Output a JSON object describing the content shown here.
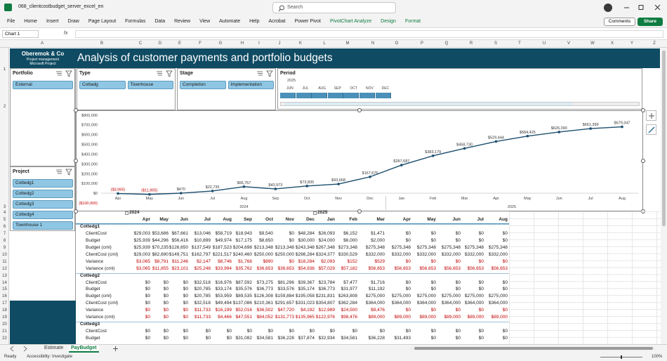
{
  "window": {
    "title": "068_clientcostbudget_server_excel_en",
    "search": "Search"
  },
  "ribbon": {
    "tabs": [
      "File",
      "Home",
      "Insert",
      "Draw",
      "Page Layout",
      "Formulas",
      "Data",
      "Review",
      "View",
      "Automate",
      "Help",
      "Acrobat",
      "Power Pivot"
    ],
    "context_tabs": [
      "PivotChart Analyze",
      "Design",
      "Format"
    ],
    "context_color": "#107c41",
    "comments": "Comments",
    "share": "Share"
  },
  "formula_bar": {
    "name_box": "Chart 1",
    "fx": "fx"
  },
  "columns": [
    "A",
    "B",
    "C",
    "D",
    "E",
    "F",
    "G",
    "H",
    "I",
    "J",
    "K",
    "L",
    "M",
    "N",
    "O",
    "P",
    "Q",
    "R",
    "S",
    "T",
    "U",
    "V",
    "W",
    "X",
    "Y",
    "Z"
  ],
  "rows": [
    "1",
    "2",
    "3",
    "4",
    "5",
    "6",
    "7",
    "8",
    "9",
    "10",
    "11",
    "12",
    "13",
    "14",
    "15",
    "16",
    "17",
    "18",
    "19",
    "20",
    "21",
    "22"
  ],
  "dashboard": {
    "company": "Oberemok & Co",
    "line1": "Project management",
    "line2": "Microsoft Project",
    "title": "Analysis of customer payments and portfolio budgets"
  },
  "slicers": [
    {
      "title": "Portfolio",
      "items": [
        "External"
      ]
    },
    {
      "title": "Type",
      "items": [
        "Cottadg",
        "Townhouse"
      ]
    },
    {
      "title": "Stage",
      "items": [
        "Completion",
        "Implementation"
      ]
    },
    {
      "title": "Project",
      "items": [
        "Cottedg1",
        "Cottedg2",
        "Cottedg3",
        "Cottedg4",
        "Townhouse 1"
      ]
    }
  ],
  "timeline": {
    "title": "Period",
    "year": "2025",
    "months": [
      "JUN",
      "JUL",
      "AUG",
      "SEP",
      "OCT",
      "NOV",
      "DEC"
    ]
  },
  "chart_data": {
    "type": "line",
    "categories": [
      "Apr",
      "May",
      "Jun",
      "Jul",
      "Aug",
      "Sep",
      "Oct",
      "Nov",
      "Dec",
      "Jan",
      "Feb",
      "Mar",
      "Apr",
      "May",
      "Jun",
      "Jul",
      "Aug"
    ],
    "category_groups": [
      {
        "label": "2024",
        "count": 9
      },
      {
        "label": "2025",
        "count": 8
      }
    ],
    "values": [
      -3065,
      -11855,
      470,
      22735,
      66757,
      43973,
      73835,
      93668,
      167675,
      287687,
      383179,
      458730,
      529444,
      584425,
      626390,
      661399,
      679347
    ],
    "value_labels": [
      "($3,065)",
      "($11,855)",
      "$470",
      "$22,735",
      "$66,757",
      "$43,973",
      "$73,835",
      "$93,668",
      "$167,675",
      "$287,687",
      "$383,179",
      "$458,730",
      "$529,444",
      "$584,425",
      "$626,390",
      "$661,399",
      "$679,347"
    ],
    "color": "#1d4f6e",
    "negative_label_color": "#c00000",
    "ylim": [
      -100000,
      800000
    ],
    "yticks": [
      {
        "value": 800000,
        "label": "$800,000"
      },
      {
        "value": 700000,
        "label": "$700,000"
      },
      {
        "value": 600000,
        "label": "$600,000"
      },
      {
        "value": 500000,
        "label": "$500,000"
      },
      {
        "value": 400000,
        "label": "$400,000"
      },
      {
        "value": 300000,
        "label": "$300,000"
      },
      {
        "value": 200000,
        "label": "$200,000"
      },
      {
        "value": 100000,
        "label": "$100,000"
      },
      {
        "value": 0,
        "label": "$0"
      },
      {
        "value": -100000,
        "label": "($100,000)"
      }
    ],
    "negative_tick_color": "#c00000",
    "grid": false
  },
  "pivot": {
    "years": [
      {
        "label": "2024",
        "start": 0
      },
      {
        "label": "2025",
        "start": 9
      }
    ],
    "months": [
      "Apr",
      "May",
      "Jun",
      "Jul",
      "Aug",
      "Sep",
      "Oct",
      "Nov",
      "Dec",
      "Jan",
      "Feb",
      "Mar",
      "Apr",
      "May",
      "Jun",
      "Jul",
      "Aug"
    ],
    "groups": [
      {
        "name": "Cottedg1",
        "rows": [
          {
            "label": "ClientCost",
            "cells": [
              "$29,003",
              "$53,686",
              "$67,661",
              "$13,046",
              "$58,719",
              "$18,943",
              "$9,540",
              "$0",
              "$48,284",
              "$26,093",
              "$6,152",
              "$1,471",
              "$0",
              "$0",
              "$0",
              "$0",
              "$0"
            ]
          },
          {
            "label": "Budget",
            "cells": [
              "$25,939",
              "$44,296",
              "$56,416",
              "$10,899",
              "$49,974",
              "$17,175",
              "$8,650",
              "$0",
              "$30,000",
              "$24,000",
              "$6,000",
              "$2,000",
              "$0",
              "$0",
              "$0",
              "$0",
              "$0"
            ]
          },
          {
            "label": "Budget (cml)",
            "cells": [
              "$25,939",
              "$70,235",
              "$126,650",
              "$137,549",
              "$187,523",
              "$204,698",
              "$213,348",
              "$213,348",
              "$243,348",
              "$267,348",
              "$273,348",
              "$275,348",
              "$275,348",
              "$275,348",
              "$275,348",
              "$275,348",
              "$275,348"
            ]
          },
          {
            "label": "ClientCost (cml)",
            "cells": [
              "$29,003",
              "$82,690",
              "$149,751",
              "$162,797",
              "$221,517",
              "$240,460",
              "$250,000",
              "$250,000",
              "$298,284",
              "$324,377",
              "$330,529",
              "$332,000",
              "$332,000",
              "$332,000",
              "$332,000",
              "$332,000",
              "$332,000"
            ]
          },
          {
            "label": "Variance",
            "color": "#c00000",
            "cells": [
              "$3,065",
              "$8,791",
              "$11,246",
              "$2,147",
              "$8,746",
              "$1,768",
              "$890",
              "$0",
              "$18,284",
              "$2,093",
              "$152",
              "$529",
              "$0",
              "$0",
              "$0",
              "$0",
              "$0"
            ]
          },
          {
            "label": "Variance (cml)",
            "color": "#c00000",
            "cells": [
              "$3,065",
              "$11,855",
              "$23,101",
              "$25,248",
              "$33,994",
              "$35,762",
              "$36,653",
              "$36,653",
              "$54,936",
              "$57,029",
              "$57,182",
              "$56,653",
              "$56,653",
              "$56,653",
              "$56,653",
              "$56,653",
              "$56,653"
            ]
          }
        ]
      },
      {
        "name": "Cottedg2",
        "rows": [
          {
            "label": "ClientCost",
            "cells": [
              "$0",
              "$0",
              "$0",
              "$32,518",
              "$16,976",
              "$87,592",
              "$73,275",
              "$81,296",
              "$39,367",
              "$23,784",
              "$7,477",
              "$1,716",
              "$0",
              "$0",
              "$0",
              "$0",
              "$0"
            ]
          },
          {
            "label": "Budget",
            "cells": [
              "$0",
              "$0",
              "$0",
              "$20,785",
              "$33,174",
              "$35,576",
              "$36,773",
              "$33,576",
              "$35,174",
              "$36,773",
              "$31,977",
              "$11,192",
              "$0",
              "$0",
              "$0",
              "$0",
              "$0"
            ]
          },
          {
            "label": "Budget (cml)",
            "cells": [
              "$0",
              "$0",
              "$0",
              "$20,785",
              "$53,959",
              "$89,535",
              "$126,308",
              "$159,884",
              "$195,058",
              "$231,831",
              "$263,808",
              "$275,000",
              "$275,000",
              "$275,000",
              "$275,000",
              "$275,000",
              "$275,000"
            ]
          },
          {
            "label": "ClientCost (cml)",
            "cells": [
              "$0",
              "$0",
              "$0",
              "$32,518",
              "$49,494",
              "$137,086",
              "$210,361",
              "$291,657",
              "$331,023",
              "$354,807",
              "$362,284",
              "$364,000",
              "$364,000",
              "$364,000",
              "$364,000",
              "$364,000",
              "$364,000"
            ]
          },
          {
            "label": "Variance",
            "color": "#c00000",
            "cells": [
              "$0",
              "$0",
              "$0",
              "$11,733",
              "$16,199",
              "$52,016",
              "$36,502",
              "$47,720",
              "$4,192",
              "$12,989",
              "$24,500",
              "$9,476",
              "$0",
              "$0",
              "$0",
              "$0",
              "$0"
            ]
          },
          {
            "label": "Variance (cml)",
            "color": "#c00000",
            "cells": [
              "$0",
              "$0",
              "$0",
              "$11,733",
              "$4,466",
              "$47,551",
              "$84,052",
              "$131,773",
              "$135,965",
              "$122,976",
              "$98,476",
              "$89,000",
              "$89,000",
              "$89,000",
              "$89,000",
              "$89,000",
              "$89,000"
            ]
          }
        ]
      },
      {
        "name": "Cottedg3",
        "rows": [
          {
            "label": "ClientCost",
            "cells": [
              "$0",
              "$0",
              "$0",
              "$0",
              "$0",
              "$0",
              "$0",
              "$0",
              "$0",
              "$0",
              "$0",
              "$0",
              "$0",
              "$0",
              "$0",
              "$0",
              "$0"
            ]
          },
          {
            "label": "Budget",
            "cells": [
              "$0",
              "$0",
              "$0",
              "$0",
              "$0",
              "$31,082",
              "$34,581",
              "$36,228",
              "$37,874",
              "$32,934",
              "$34,581",
              "$36,228",
              "$31,493",
              "$0",
              "$0",
              "$0",
              "$0"
            ]
          }
        ]
      }
    ]
  },
  "sheet_tabs": [
    "Estimate",
    "PayBudget"
  ],
  "active_tab": 1,
  "status": {
    "ready": "Ready",
    "accessibility": "Accessibility: Investigate",
    "zoom": "100%"
  }
}
